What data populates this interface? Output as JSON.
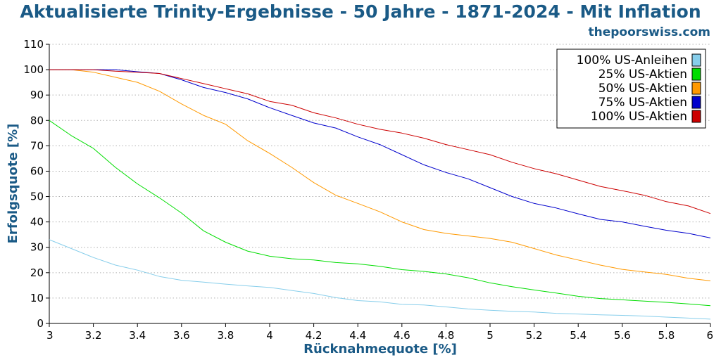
{
  "chart_data": {
    "type": "line",
    "title": "Aktualisierte Trinity-Ergebnisse - 50 Jahre - 1871-2024 - Mit Inflation",
    "subtitle": "thepoorswiss.com",
    "xlabel": "Rücknahmequote [%]",
    "ylabel": "Erfolgsquote [%]",
    "xlim": [
      3,
      6
    ],
    "ylim": [
      0,
      110
    ],
    "xticks": [
      "3",
      "3.2",
      "3.4",
      "3.6",
      "3.8",
      "4",
      "4.2",
      "4.4",
      "4.6",
      "4.8",
      "5",
      "5.2",
      "5.4",
      "5.6",
      "5.8",
      "6"
    ],
    "yticks": [
      "0",
      "10",
      "20",
      "30",
      "40",
      "50",
      "60",
      "70",
      "80",
      "90",
      "100",
      "110"
    ],
    "grid": "horizontal dotted",
    "legend_position": "top-right",
    "x": [
      3.0,
      3.1,
      3.2,
      3.3,
      3.4,
      3.5,
      3.6,
      3.7,
      3.8,
      3.9,
      4.0,
      4.1,
      4.2,
      4.3,
      4.4,
      4.5,
      4.6,
      4.7,
      4.8,
      4.9,
      5.0,
      5.1,
      5.2,
      5.3,
      5.4,
      5.5,
      5.6,
      5.7,
      5.8,
      5.9,
      6.0
    ],
    "series": [
      {
        "name": "100% US-Anleihen",
        "color": "#87ceeb",
        "values": [
          33,
          29.5,
          26,
          23,
          21,
          18.5,
          17,
          16.3,
          15.5,
          14.8,
          14.2,
          13,
          11.8,
          10.2,
          9,
          8.5,
          7.5,
          7.3,
          6.5,
          5.7,
          5.2,
          4.8,
          4.5,
          4,
          3.7,
          3.4,
          3.2,
          2.9,
          2.5,
          2.1,
          1.7
        ]
      },
      {
        "name": "25% US-Aktien",
        "color": "#00dd00",
        "values": [
          80,
          74,
          69,
          61.5,
          55,
          49.5,
          43.5,
          36.5,
          32,
          28.5,
          26.5,
          25.5,
          25,
          24,
          23.5,
          22.5,
          21.2,
          20.5,
          19.5,
          18,
          16,
          14.5,
          13.2,
          12,
          10.7,
          9.8,
          9.3,
          8.8,
          8.3,
          7.7,
          7
        ]
      },
      {
        "name": "50% US-Aktien",
        "color": "#ff9900",
        "values": [
          100,
          100,
          99,
          97,
          95,
          91.5,
          86.5,
          82,
          78.5,
          72,
          67,
          61.5,
          55.5,
          50.5,
          47.3,
          44,
          40,
          37,
          35.5,
          34.5,
          33.5,
          32,
          29.5,
          27,
          25,
          23,
          21.3,
          20.3,
          19.3,
          17.8,
          16.8
        ]
      },
      {
        "name": "75% US-Aktien",
        "color": "#0000cc",
        "values": [
          100,
          100,
          100,
          100,
          99.2,
          98.5,
          96,
          93,
          91,
          88.5,
          85,
          82,
          79,
          77,
          73.5,
          70.5,
          66.5,
          62.5,
          59.5,
          57,
          53.5,
          50,
          47.3,
          45.5,
          43.2,
          41,
          40,
          38.3,
          36.7,
          35.5,
          33.7
        ]
      },
      {
        "name": "100% US-Aktien",
        "color": "#cc0000",
        "values": [
          100,
          100,
          100,
          99.4,
          99,
          98.5,
          96.5,
          94.5,
          92.5,
          90.5,
          87.5,
          86,
          83,
          81,
          78.5,
          76.5,
          75,
          73,
          70.5,
          68.5,
          66.5,
          63.5,
          61,
          59,
          56.5,
          54,
          52.3,
          50.5,
          48,
          46.3,
          43.3
        ]
      }
    ]
  }
}
